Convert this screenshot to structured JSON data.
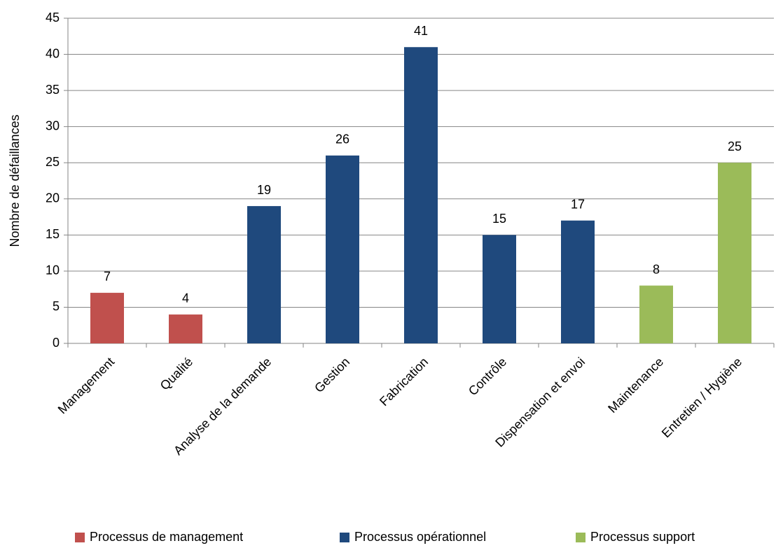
{
  "chart_data": {
    "type": "bar",
    "y_label": "Nombre de défaillances",
    "categories": [
      "Management",
      "Qualité",
      "Analyse de la demande",
      "Gestion",
      "Fabrication",
      "Contrôle",
      "Dispensation et envoi",
      "Maintenance",
      "Entretien / Hygiène"
    ],
    "series": [
      {
        "name": "Processus de management",
        "color": "#c0504d",
        "values": [
          7,
          4,
          null,
          null,
          null,
          null,
          null,
          null,
          null
        ]
      },
      {
        "name": "Processus opérationnel",
        "color": "#1f497d",
        "values": [
          null,
          null,
          19,
          26,
          41,
          15,
          17,
          null,
          null
        ]
      },
      {
        "name": "Processus support",
        "color": "#9bbb59",
        "values": [
          null,
          null,
          null,
          null,
          null,
          null,
          null,
          8,
          25
        ]
      }
    ],
    "ylim": [
      0,
      45
    ],
    "yticks": [
      0,
      5,
      10,
      15,
      20,
      25,
      30,
      35,
      40,
      45
    ],
    "grid": true,
    "legend": "bottom"
  }
}
